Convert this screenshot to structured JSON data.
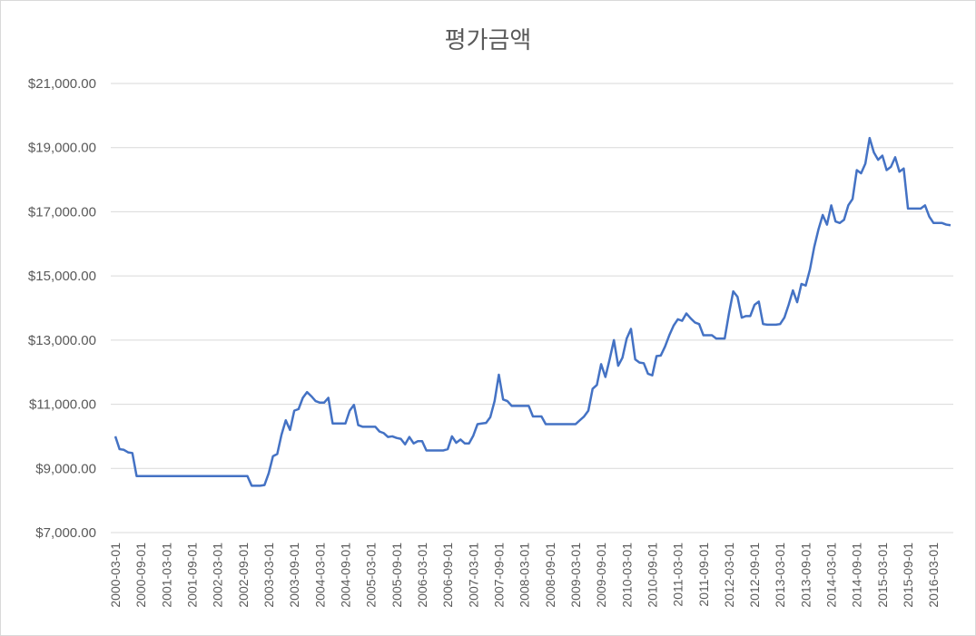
{
  "chart_data": {
    "type": "line",
    "title": "평가금액",
    "xlabel": "",
    "ylabel": "",
    "ylim": [
      7000,
      21000
    ],
    "y_ticks": [
      7000,
      9000,
      11000,
      13000,
      15000,
      17000,
      19000,
      21000
    ],
    "y_tick_labels": [
      "$7,000.00",
      "$9,000.00",
      "$11,000.00",
      "$13,000.00",
      "$15,000.00",
      "$17,000.00",
      "$19,000.00",
      "$21,000.00"
    ],
    "x_tick_labels": [
      "2000-03-01",
      "2000-09-01",
      "2001-03-01",
      "2001-09-01",
      "2002-03-01",
      "2002-09-01",
      "2003-03-01",
      "2003-09-01",
      "2004-03-01",
      "2004-09-01",
      "2005-03-01",
      "2005-09-01",
      "2006-03-01",
      "2006-09-01",
      "2007-03-01",
      "2007-09-01",
      "2008-03-01",
      "2008-09-01",
      "2009-03-01",
      "2009-09-01",
      "2010-03-01",
      "2010-09-01",
      "2011-03-01",
      "2011-09-01",
      "2012-03-01",
      "2012-09-01",
      "2013-03-01",
      "2013-09-01",
      "2014-03-01",
      "2014-09-01",
      "2015-03-01",
      "2015-09-01",
      "2016-03-01"
    ],
    "grid": true,
    "line_color": "#4472c4",
    "series": [
      {
        "x_start": "2000-03-01",
        "x_end": "2016-03-01",
        "values": [
          10000,
          9600,
          9580,
          9500,
          9480,
          8760,
          8760,
          8760,
          8760,
          8760,
          8760,
          8760,
          8760,
          8760,
          8760,
          8760,
          8760,
          8760,
          8760,
          8760,
          8760,
          8760,
          8760,
          8760,
          8760,
          8760,
          8760,
          8760,
          8760,
          8760,
          8760,
          8760,
          8460,
          8460,
          8460,
          8480,
          8850,
          9380,
          9450,
          10050,
          10500,
          10200,
          10800,
          10850,
          11200,
          11380,
          11250,
          11100,
          11050,
          11050,
          11200,
          10400,
          10400,
          10400,
          10400,
          10800,
          10980,
          10350,
          10300,
          10300,
          10300,
          10300,
          10150,
          10100,
          9980,
          10000,
          9950,
          9920,
          9750,
          9980,
          9780,
          9850,
          9850,
          9560,
          9560,
          9560,
          9560,
          9560,
          9600,
          10000,
          9800,
          9900,
          9780,
          9780,
          10020,
          10380,
          10400,
          10420,
          10600,
          11100,
          11920,
          11150,
          11100,
          10950,
          10950,
          10950,
          10950,
          10950,
          10620,
          10620,
          10620,
          10380,
          10380,
          10380,
          10380,
          10380,
          10380,
          10380,
          10380,
          10500,
          10620,
          10800,
          11480,
          11600,
          12250,
          11850,
          12400,
          13000,
          12200,
          12450,
          13050,
          13350,
          12400,
          12300,
          12280,
          11950,
          11900,
          12500,
          12520,
          12800,
          13150,
          13450,
          13650,
          13600,
          13830,
          13680,
          13550,
          13500,
          13150,
          13150,
          13150,
          13050,
          13050,
          13050,
          13830,
          14520,
          14350,
          13700,
          13750,
          13750,
          14100,
          14200,
          13500,
          13480,
          13480,
          13480,
          13500,
          13700,
          14100,
          14550,
          14180,
          14750,
          14700,
          15200,
          15900,
          16450,
          16900,
          16600,
          17200,
          16700,
          16650,
          16750,
          17200,
          17400,
          18300,
          18200,
          18500,
          19300,
          18850,
          18620,
          18750,
          18300,
          18400,
          18700,
          18250,
          18350,
          17100,
          17100,
          17100,
          17100,
          17200,
          16850,
          16650,
          16650,
          16650,
          16600,
          16580
        ]
      }
    ]
  }
}
